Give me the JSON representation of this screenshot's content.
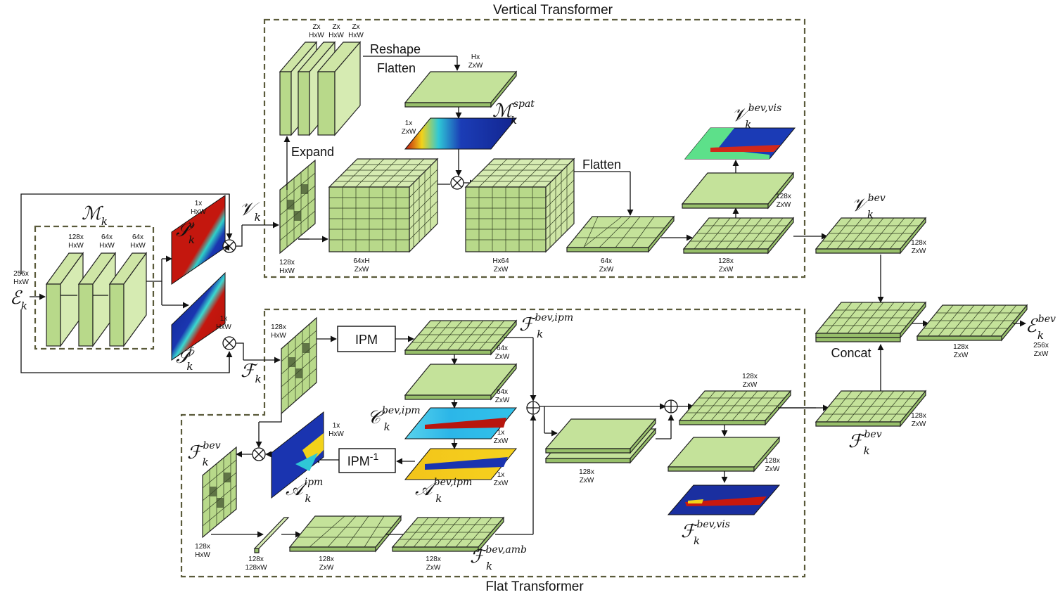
{
  "titles": {
    "vertical": "Vertical Transformer",
    "flat": "Flat Transformer"
  },
  "ops": {
    "reshape": "Reshape",
    "flatten_a": "Flatten",
    "expand": "Expand",
    "flatten_b": "Flatten",
    "ipm": "IPM",
    "ipm_inv": "IPM",
    "ipm_inv_sup": "-1",
    "concat": "Concat"
  },
  "dims": {
    "e_in": [
      "256x",
      "HxW"
    ],
    "m1": [
      "128x",
      "HxW"
    ],
    "m2": [
      "64x",
      "HxW"
    ],
    "m3": [
      "64x",
      "HxW"
    ],
    "sv": [
      "1x",
      "HxW"
    ],
    "sf": [
      "1x",
      "HxW"
    ],
    "z1": [
      "Zx",
      "HxW"
    ],
    "z2": [
      "Zx",
      "HxW"
    ],
    "z3": [
      "Zx",
      "HxW"
    ],
    "hz": [
      "Hx",
      "ZxW"
    ],
    "mspat": [
      "1x",
      "ZxW"
    ],
    "vk": [
      "128x",
      "HxW"
    ],
    "cube1": [
      "64xH",
      "ZxW"
    ],
    "cube2": [
      "Hx64",
      "ZxW"
    ],
    "flat64": [
      "64x",
      "ZxW"
    ],
    "v128a": [
      "128x",
      "ZxW"
    ],
    "v128b": [
      "128x",
      "ZxW"
    ],
    "vbev": [
      "128x",
      "ZxW"
    ],
    "fk": [
      "128x",
      "HxW"
    ],
    "fipm": [
      "64x",
      "ZxW"
    ],
    "f64b": [
      "64x",
      "ZxW"
    ],
    "c_ipm": [
      "1x",
      "ZxW"
    ],
    "a_bev": [
      "1x",
      "ZxW"
    ],
    "a_ipm": [
      "1x",
      "HxW"
    ],
    "fbev_l": [
      "128x",
      "HxW"
    ],
    "thin": [
      "128x",
      "128xW"
    ],
    "amb1": [
      "128x",
      "ZxW"
    ],
    "amb2": [
      "128x",
      "ZxW"
    ],
    "stack": [
      "128x",
      "ZxW"
    ],
    "f128a": [
      "128x",
      "ZxW"
    ],
    "f128b": [
      "128x",
      "ZxW"
    ],
    "fbev_r": [
      "128x",
      "ZxW"
    ],
    "concat_out": [
      "128x",
      "ZxW"
    ],
    "e_out": [
      "256x",
      "ZxW"
    ]
  },
  "symbols": {
    "E_in": {
      "base": "ℰ",
      "sub": "k",
      "sup": ""
    },
    "M": {
      "base": "ℳ",
      "sub": "k",
      "sup": ""
    },
    "Sv": {
      "base": "𝒮",
      "sub": "k",
      "sup": "v"
    },
    "Sf": {
      "base": "𝒮",
      "sub": "k",
      "sup": "f"
    },
    "V": {
      "base": "𝒱",
      "sub": "k",
      "sup": ""
    },
    "F": {
      "base": "ℱ",
      "sub": "k",
      "sup": ""
    },
    "Mspat": {
      "base": "ℳ",
      "sub": "k",
      "sup": "spat"
    },
    "Vbevvis": {
      "base": "𝒱",
      "sub": "k",
      "sup": "bev,vis"
    },
    "Vbev": {
      "base": "𝒱",
      "sub": "k",
      "sup": "bev"
    },
    "Fbevipm": {
      "base": "ℱ",
      "sub": "k",
      "sup": "bev,ipm"
    },
    "Cbevipm": {
      "base": "𝒞",
      "sub": "k",
      "sup": "bev,ipm"
    },
    "Abevipm": {
      "base": "𝒜",
      "sub": "k",
      "sup": "bev,ipm"
    },
    "Aipm": {
      "base": "𝒜",
      "sub": "k",
      "sup": "ipm"
    },
    "Fbev_l": {
      "base": "ℱ",
      "sub": "k",
      "sup": "bev"
    },
    "Fbevamb": {
      "base": "ℱ",
      "sub": "k",
      "sup": "bev,amb"
    },
    "Fbevvis": {
      "base": "ℱ",
      "sub": "k",
      "sup": "bev,vis"
    },
    "Fbev_r": {
      "base": "ℱ",
      "sub": "k",
      "sup": "bev"
    },
    "E_out": {
      "base": "ℰ",
      "sub": "k",
      "sup": "bev"
    }
  },
  "colors": {
    "plate": "#b8d98a",
    "heat_low": "#1a2fa8",
    "heat_mid": "#29c9d8",
    "heat_high": "#d21a10",
    "border": "#5a5a3a"
  },
  "icons": {
    "multiply": "circled-times-icon",
    "add": "circled-plus-icon"
  }
}
